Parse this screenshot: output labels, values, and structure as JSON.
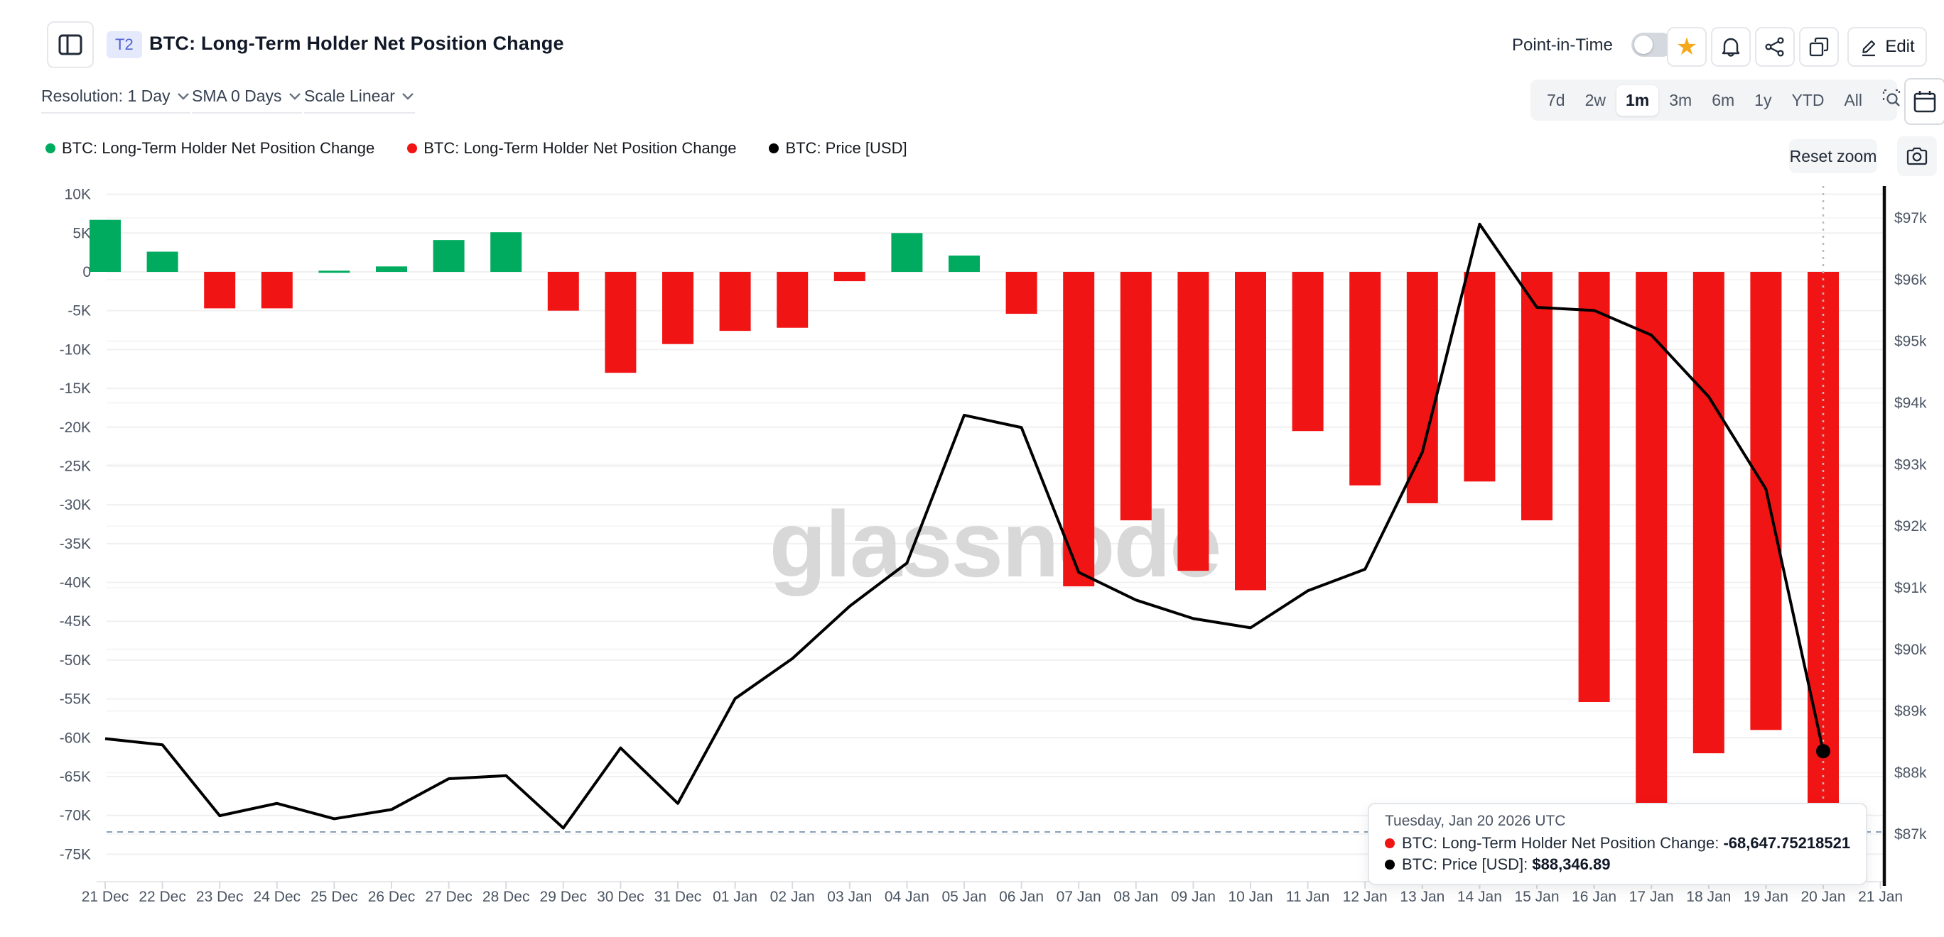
{
  "header": {
    "badge": "T2",
    "title": "BTC: Long-Term Holder Net Position Change",
    "point_in_time_label": "Point-in-Time",
    "edit_label": "Edit"
  },
  "toolbar": {
    "resolution_label": "Resolution: 1 Day",
    "sma_label": "SMA 0 Days",
    "scale_label": "Scale Linear",
    "ranges": [
      "7d",
      "2w",
      "1m",
      "3m",
      "6m",
      "1y",
      "YTD",
      "All"
    ],
    "selected_range": "1m",
    "reset_zoom_label": "Reset zoom"
  },
  "legend": [
    {
      "label": "BTC: Long-Term Holder Net Position Change",
      "color": "#00ab5f"
    },
    {
      "label": "BTC: Long-Term Holder Net Position Change",
      "color": "#f11414"
    },
    {
      "label": "BTC: Price [USD]",
      "color": "#000000"
    }
  ],
  "watermark": "glassnode",
  "tooltip": {
    "date": "Tuesday, Jan 20 2026 UTC",
    "rows": [
      {
        "color": "#f11414",
        "label": "BTC: Long-Term Holder Net Position Change:",
        "value": "-68,647.75218521"
      },
      {
        "color": "#000000",
        "label": "BTC: Price [USD]:",
        "value": "$88,346.89"
      }
    ]
  },
  "chart_data": {
    "type": "bar+line combo",
    "title": "BTC: Long-Term Holder Net Position Change",
    "categories": [
      "21 Dec",
      "22 Dec",
      "23 Dec",
      "24 Dec",
      "25 Dec",
      "26 Dec",
      "27 Dec",
      "28 Dec",
      "29 Dec",
      "30 Dec",
      "31 Dec",
      "01 Jan",
      "02 Jan",
      "03 Jan",
      "04 Jan",
      "05 Jan",
      "06 Jan",
      "07 Jan",
      "08 Jan",
      "09 Jan",
      "10 Jan",
      "11 Jan",
      "12 Jan",
      "13 Jan",
      "14 Jan",
      "15 Jan",
      "16 Jan",
      "17 Jan",
      "18 Jan",
      "19 Jan",
      "20 Jan"
    ],
    "x_tick_labels": [
      "21 Dec",
      "22 Dec",
      "23 Dec",
      "24 Dec",
      "25 Dec",
      "26 Dec",
      "27 Dec",
      "28 Dec",
      "29 Dec",
      "30 Dec",
      "31 Dec",
      "01 Jan",
      "02 Jan",
      "03 Jan",
      "04 Jan",
      "05 Jan",
      "06 Jan",
      "07 Jan",
      "08 Jan",
      "09 Jan",
      "10 Jan",
      "11 Jan",
      "12 Jan",
      "13 Jan",
      "14 Jan",
      "15 Jan",
      "16 Jan",
      "17 Jan",
      "18 Jan",
      "19 Jan",
      "20 Jan",
      "21 Jan"
    ],
    "series": [
      {
        "name": "BTC: Long-Term Holder Net Position Change",
        "type": "bar",
        "axis": "left",
        "positive_color": "#00ab5f",
        "negative_color": "#f11414",
        "values": [
          6700,
          2600,
          -4700,
          -4700,
          150,
          700,
          4100,
          5100,
          -5000,
          -13000,
          -9300,
          -7600,
          -7200,
          -1200,
          5000,
          2100,
          -5400,
          -40500,
          -32000,
          -38500,
          -41000,
          -20500,
          -27500,
          -29800,
          -27000,
          -32000,
          -55400,
          -70000,
          -62000,
          -59000,
          -68647.75218521
        ]
      },
      {
        "name": "BTC: Price [USD]",
        "type": "line",
        "axis": "right",
        "color": "#000000",
        "values": [
          88550,
          88450,
          87300,
          87500,
          87250,
          87400,
          87900,
          87950,
          87100,
          88400,
          87500,
          89200,
          89850,
          90700,
          91400,
          93800,
          93600,
          91250,
          90800,
          90500,
          90350,
          90950,
          91300,
          93200,
          96900,
          95550,
          95500,
          95100,
          94100,
          92600,
          88346.89
        ]
      }
    ],
    "left_axis": {
      "tick_labels": [
        "10K",
        "5K",
        "0",
        "-5K",
        "-10K",
        "-15K",
        "-20K",
        "-25K",
        "-30K",
        "-35K",
        "-40K",
        "-45K",
        "-50K",
        "-55K",
        "-60K",
        "-65K",
        "-70K",
        "-75K"
      ],
      "tick_values": [
        10000,
        5000,
        0,
        -5000,
        -10000,
        -15000,
        -20000,
        -25000,
        -30000,
        -35000,
        -40000,
        -45000,
        -50000,
        -55000,
        -60000,
        -65000,
        -70000,
        -75000
      ],
      "domain": [
        -78530,
        11060
      ]
    },
    "right_axis": {
      "tick_labels": [
        "$97k",
        "$96k",
        "$95k",
        "$94k",
        "$93k",
        "$92k",
        "$91k",
        "$90k",
        "$89k",
        "$88k",
        "$87k"
      ],
      "tick_values": [
        97000,
        96000,
        95000,
        94000,
        93000,
        92000,
        91000,
        90000,
        89000,
        88000,
        87000
      ],
      "domain": [
        86230,
        97520
      ]
    },
    "crosshair": {
      "x_index": 30,
      "h_line_left_value": -72130
    },
    "grid": true,
    "legend_position": "top-left"
  }
}
